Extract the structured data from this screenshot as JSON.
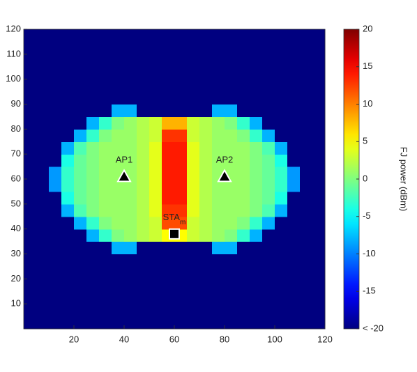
{
  "chart_data": {
    "type": "heatmap",
    "x": [
      2.5,
      7.5,
      12.5,
      17.5,
      22.5,
      27.5,
      32.5,
      37.5,
      42.5,
      47.5,
      52.5,
      57.5,
      62.5,
      67.5,
      72.5,
      77.5,
      82.5,
      87.5,
      92.5,
      97.5,
      102.5,
      107.5,
      112.5,
      117.5
    ],
    "y": [
      2.5,
      7.5,
      12.5,
      17.5,
      22.5,
      27.5,
      32.5,
      37.5,
      42.5,
      47.5,
      52.5,
      57.5,
      62.5,
      67.5,
      72.5,
      77.5,
      82.5,
      87.5,
      92.5,
      97.5,
      102.5,
      107.5,
      112.5,
      117.5
    ],
    "z": [
      [
        -20,
        -20,
        -20,
        -20,
        -20,
        -20,
        -20,
        -20,
        -20,
        -20,
        -20,
        -20,
        -20,
        -20,
        -20,
        -20,
        -20,
        -20,
        -20,
        -20,
        -20,
        -20,
        -20,
        -20
      ],
      [
        -20,
        -20,
        -20,
        -20,
        -20,
        -20,
        -20,
        -20,
        -20,
        -20,
        -20,
        -20,
        -20,
        -20,
        -20,
        -20,
        -20,
        -20,
        -20,
        -20,
        -20,
        -20,
        -20,
        -20
      ],
      [
        -20,
        -20,
        -20,
        -20,
        -20,
        -20,
        -20,
        -20,
        -20,
        -20,
        -20,
        -20,
        -20,
        -20,
        -20,
        -20,
        -20,
        -20,
        -20,
        -20,
        -20,
        -20,
        -20,
        -20
      ],
      [
        -20,
        -20,
        -20,
        -20,
        -20,
        -20,
        -20,
        -20,
        -20,
        -20,
        -20,
        -20,
        -20,
        -20,
        -20,
        -20,
        -20,
        -20,
        -20,
        -20,
        -20,
        -20,
        -20,
        -20
      ],
      [
        -20,
        -20,
        -20,
        -20,
        -20,
        -20,
        -20,
        -20,
        -20,
        -20,
        -20,
        -20,
        -20,
        -20,
        -20,
        -20,
        -20,
        -20,
        -20,
        -20,
        -20,
        -20,
        -20,
        -20
      ],
      [
        -20,
        -20,
        -20,
        -20,
        -20,
        -20,
        -20,
        -20,
        -20,
        -20,
        -20,
        -20,
        -20,
        -20,
        -20,
        -20,
        -20,
        -20,
        -20,
        -20,
        -20,
        -20,
        -20,
        -20
      ],
      [
        -20,
        -20,
        -20,
        -20,
        -20,
        -20,
        -20,
        -8,
        -8,
        -20,
        -20,
        -20,
        -20,
        -20,
        -20,
        -8,
        -8,
        -20,
        -20,
        -20,
        -20,
        -20,
        -20,
        -20
      ],
      [
        -20,
        -20,
        -20,
        -20,
        -20,
        -8,
        -3,
        0,
        1,
        2,
        3,
        5,
        5,
        3,
        2,
        1,
        0,
        -3,
        -8,
        -20,
        -20,
        -20,
        -20,
        -20
      ],
      [
        -20,
        -20,
        -20,
        -20,
        -8,
        -3,
        0,
        1,
        1,
        2,
        3,
        12,
        12,
        3,
        2,
        1,
        1,
        0,
        -3,
        -8,
        -20,
        -20,
        -20,
        -20
      ],
      [
        -20,
        -20,
        -20,
        -8,
        -2,
        0,
        1,
        1,
        1,
        2,
        4,
        13,
        13,
        4,
        2,
        1,
        1,
        1,
        0,
        -2,
        -8,
        -20,
        -20,
        -20
      ],
      [
        -20,
        -20,
        -20,
        -4,
        -1,
        0,
        1,
        1,
        1,
        2,
        4,
        14,
        14,
        4,
        2,
        1,
        1,
        1,
        0,
        -1,
        -4,
        -20,
        -20,
        -20
      ],
      [
        -20,
        -20,
        -9,
        -3,
        -1,
        0,
        1,
        1,
        1,
        2,
        4,
        14,
        14,
        4,
        2,
        1,
        1,
        1,
        0,
        -1,
        -3,
        -9,
        -20,
        -20
      ],
      [
        -20,
        -20,
        -9,
        -3,
        -1,
        0,
        1,
        1,
        1,
        2,
        4,
        14,
        14,
        4,
        2,
        1,
        1,
        1,
        0,
        -1,
        -3,
        -9,
        -20,
        -20
      ],
      [
        -20,
        -20,
        -20,
        -4,
        -1,
        0,
        1,
        1,
        1,
        2,
        4,
        14,
        14,
        4,
        2,
        1,
        1,
        1,
        0,
        -1,
        -4,
        -20,
        -20,
        -20
      ],
      [
        -20,
        -20,
        -20,
        -8,
        -2,
        0,
        1,
        1,
        1,
        2,
        4,
        14,
        14,
        4,
        2,
        1,
        1,
        1,
        0,
        -2,
        -8,
        -20,
        -20,
        -20
      ],
      [
        -20,
        -20,
        -20,
        -20,
        -8,
        -3,
        0,
        1,
        1,
        2,
        3,
        13,
        13,
        3,
        2,
        1,
        1,
        0,
        -3,
        -8,
        -20,
        -20,
        -20,
        -20
      ],
      [
        -20,
        -20,
        -20,
        -20,
        -20,
        -8,
        -3,
        0,
        1,
        2,
        3,
        8,
        8,
        3,
        2,
        1,
        0,
        -3,
        -8,
        -20,
        -20,
        -20,
        -20,
        -20
      ],
      [
        -20,
        -20,
        -20,
        -20,
        -20,
        -20,
        -20,
        -8,
        -8,
        -20,
        -20,
        -20,
        -20,
        -20,
        -20,
        -8,
        -8,
        -20,
        -20,
        -20,
        -20,
        -20,
        -20,
        -20
      ],
      [
        -20,
        -20,
        -20,
        -20,
        -20,
        -20,
        -20,
        -20,
        -20,
        -20,
        -20,
        -20,
        -20,
        -20,
        -20,
        -20,
        -20,
        -20,
        -20,
        -20,
        -20,
        -20,
        -20,
        -20
      ],
      [
        -20,
        -20,
        -20,
        -20,
        -20,
        -20,
        -20,
        -20,
        -20,
        -20,
        -20,
        -20,
        -20,
        -20,
        -20,
        -20,
        -20,
        -20,
        -20,
        -20,
        -20,
        -20,
        -20,
        -20
      ],
      [
        -20,
        -20,
        -20,
        -20,
        -20,
        -20,
        -20,
        -20,
        -20,
        -20,
        -20,
        -20,
        -20,
        -20,
        -20,
        -20,
        -20,
        -20,
        -20,
        -20,
        -20,
        -20,
        -20,
        -20
      ],
      [
        -20,
        -20,
        -20,
        -20,
        -20,
        -20,
        -20,
        -20,
        -20,
        -20,
        -20,
        -20,
        -20,
        -20,
        -20,
        -20,
        -20,
        -20,
        -20,
        -20,
        -20,
        -20,
        -20,
        -20
      ],
      [
        -20,
        -20,
        -20,
        -20,
        -20,
        -20,
        -20,
        -20,
        -20,
        -20,
        -20,
        -20,
        -20,
        -20,
        -20,
        -20,
        -20,
        -20,
        -20,
        -20,
        -20,
        -20,
        -20,
        -20
      ],
      [
        -20,
        -20,
        -20,
        -20,
        -20,
        -20,
        -20,
        -20,
        -20,
        -20,
        -20,
        -20,
        -20,
        -20,
        -20,
        -20,
        -20,
        -20,
        -20,
        -20,
        -20,
        -20,
        -20,
        -20
      ]
    ],
    "xlim": [
      0,
      120
    ],
    "xticks": [
      20,
      40,
      60,
      80,
      100,
      120
    ],
    "ylim": [
      0,
      120
    ],
    "yticks": [
      10,
      20,
      30,
      40,
      50,
      60,
      70,
      80,
      90,
      100,
      110,
      120
    ],
    "colormap": "jet",
    "clim": [
      -20,
      20
    ],
    "colorbar_ticks": [
      {
        "value": -20,
        "label": "< -20"
      },
      -15,
      -10,
      -5,
      0,
      5,
      10,
      15,
      20
    ],
    "colorbar_label": "FJ power (dBm)",
    "markers": [
      {
        "label": "AP1",
        "x": 40,
        "y": 61,
        "shape": "triangle"
      },
      {
        "label": "AP2",
        "x": 80,
        "y": 61,
        "shape": "triangle"
      },
      {
        "label": "STA",
        "sub": "m",
        "x": 60,
        "y": 38,
        "shape": "square"
      }
    ]
  }
}
